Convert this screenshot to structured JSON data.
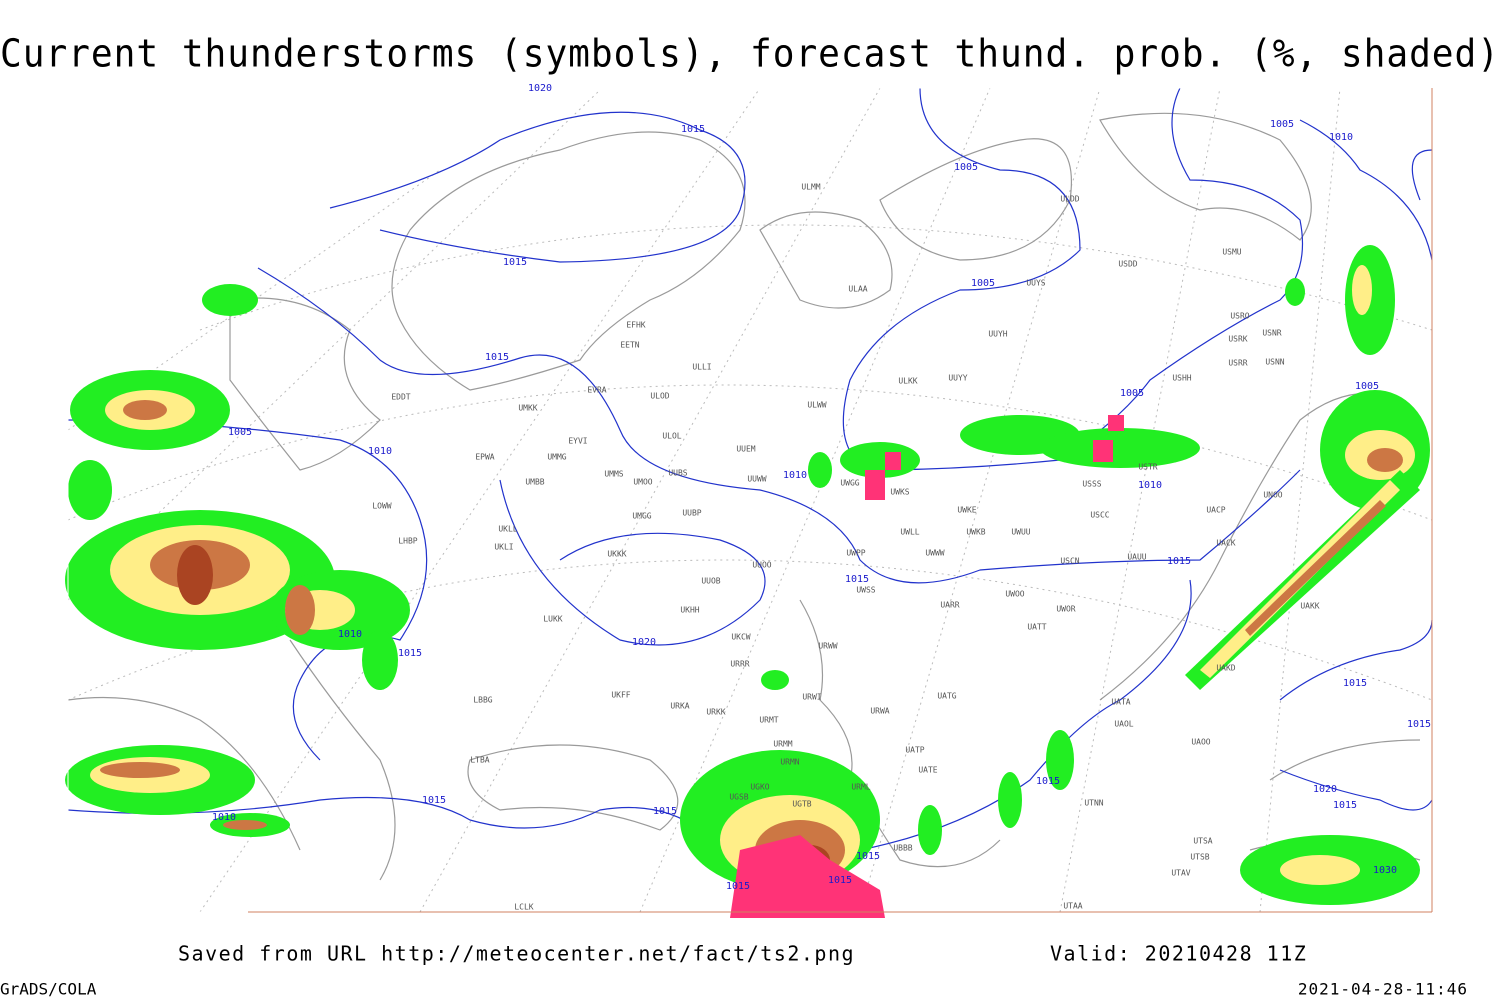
{
  "title": "Current thunderstorms (symbols), forecast thund. prob. (%, shaded)",
  "footer": {
    "saved": "Saved from URL http://meteocenter.net/fact/ts2.png",
    "valid": "Valid: 20210428 11Z",
    "software": "GrADS/COLA",
    "timestamp": "2021-04-28-11:46"
  },
  "stations": [
    "ULMM",
    "ULDD",
    "USDD",
    "USMU",
    "ULAA",
    "UUYS",
    "UUYH",
    "USRO",
    "USRK",
    "USNR",
    "USRR",
    "USNN",
    "USHH",
    "ULKK",
    "UUYY",
    "EFHK",
    "EETN",
    "ULLI",
    "EVRA",
    "ULOD",
    "ULWW",
    "EDDT",
    "UMKK",
    "ULOL",
    "UUEM",
    "EYVI",
    "EPWA",
    "UMMG",
    "UMMS",
    "UMOO",
    "UUBS",
    "UUWW",
    "UWGG",
    "UWKS",
    "UMBB",
    "LOWW",
    "UKLL",
    "UKLI",
    "LHBP",
    "UMGG",
    "UUBP",
    "UWLL",
    "UWKE",
    "UWKB",
    "UWUU",
    "USCC",
    "UACP",
    "UNOO",
    "UACK",
    "USSS",
    "USTR",
    "UKKK",
    "UUOO",
    "UWPP",
    "UWWW",
    "USCN",
    "UAUU",
    "UUOB",
    "LUKK",
    "UKHH",
    "UWSS",
    "UARR",
    "UWOO",
    "UWOR",
    "UATT",
    "UKCW",
    "URWW",
    "URRR",
    "UAKK",
    "UAKD",
    "UKFF",
    "URKA",
    "URKK",
    "URWI",
    "UATG",
    "UATA",
    "UAOL",
    "UAOO",
    "URMT",
    "URWA",
    "URMM",
    "URMN",
    "UATE",
    "UATP",
    "URML",
    "UGKO",
    "UGSB",
    "UGTB",
    "UTNN",
    "LBBG",
    "LTBA",
    "UBBB",
    "UTSA",
    "UTSB",
    "UTAV",
    "UTAA",
    "LCLK"
  ],
  "isobar_labels": [
    1020,
    1015,
    1005,
    1005,
    1010,
    1015,
    1015,
    1005,
    1005,
    1005,
    1005,
    1010,
    1010,
    1010,
    1015,
    1015,
    1010,
    1015,
    1020,
    1015,
    1015,
    1015,
    1015,
    1010,
    1015,
    1020,
    1015,
    1015,
    1015,
    1015,
    1030
  ]
}
